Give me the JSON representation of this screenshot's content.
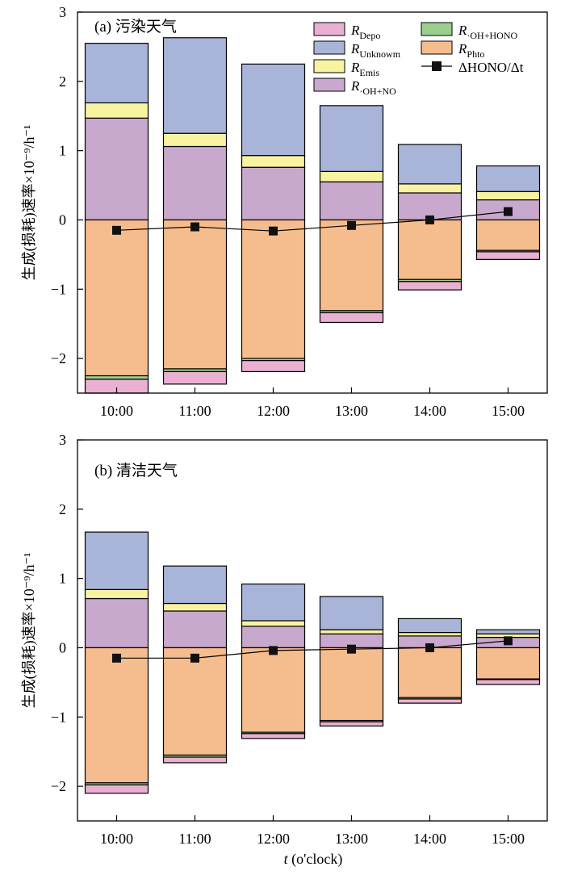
{
  "chart_data": {
    "type": "bar",
    "stacked": true,
    "ylabel": "生成(损耗)速率×10⁻⁹/h⁻¹",
    "xlabel": "t (o'clock)",
    "categories": [
      "10:00",
      "11:00",
      "12:00",
      "13:00",
      "14:00",
      "15:00"
    ],
    "ylim": [
      -2.5,
      3
    ],
    "yticks": [
      -2,
      -1,
      0,
      1,
      2,
      3
    ],
    "ytick_labels": [
      "−2",
      "−1",
      "0",
      "1",
      "2",
      "3"
    ],
    "legend": {
      "placement": "top-right",
      "entries": [
        {
          "key": "R_Depo",
          "base": "R",
          "sub": "Depo",
          "color": "#eab0d2"
        },
        {
          "key": "R_Unknown",
          "base": "R",
          "sub": "Unknowm",
          "color": "#a9b4d9"
        },
        {
          "key": "R_Emis",
          "base": "R",
          "sub": "Emis",
          "color": "#f8f3a0"
        },
        {
          "key": "R_OH_NO",
          "base": "R",
          "sub": "·OH+NO",
          "color": "#c8a9cd"
        },
        {
          "key": "R_OH_HONO",
          "base": "R",
          "sub": "·OH+HONO",
          "color": "#9ccf8e"
        },
        {
          "key": "R_Phto",
          "base": "R",
          "sub": "Phto",
          "color": "#f5bd8d"
        },
        {
          "key": "dHONO",
          "base": "ΔHONO/Δt",
          "sub": "",
          "color": "#000000"
        }
      ]
    },
    "panels": [
      {
        "title": "(a) 污染天气",
        "positive": [
          {
            "key": "R_OH_NO",
            "values": [
              1.47,
              1.06,
              0.76,
              0.55,
              0.39,
              0.29
            ]
          },
          {
            "key": "R_Emis",
            "values": [
              0.22,
              0.19,
              0.17,
              0.15,
              0.13,
              0.12
            ]
          },
          {
            "key": "R_Unknown",
            "values": [
              0.86,
              1.38,
              1.32,
              0.95,
              0.57,
              0.37
            ]
          }
        ],
        "negative": [
          {
            "key": "R_Phto",
            "values": [
              -2.25,
              -2.15,
              -2.0,
              -1.31,
              -0.86,
              -0.44
            ]
          },
          {
            "key": "R_OH_HONO",
            "values": [
              -0.05,
              -0.04,
              -0.03,
              -0.03,
              -0.03,
              -0.02
            ]
          },
          {
            "key": "R_Depo",
            "values": [
              -0.2,
              -0.18,
              -0.16,
              -0.14,
              -0.12,
              -0.11
            ]
          }
        ],
        "line": {
          "key": "dHONO",
          "values": [
            -0.15,
            -0.1,
            -0.16,
            -0.08,
            0.0,
            0.12
          ]
        }
      },
      {
        "title": "(b) 清洁天气",
        "positive": [
          {
            "key": "R_OH_NO",
            "values": [
              0.71,
              0.53,
              0.31,
              0.2,
              0.17,
              0.15
            ]
          },
          {
            "key": "R_Emis",
            "values": [
              0.13,
              0.11,
              0.08,
              0.06,
              0.05,
              0.05
            ]
          },
          {
            "key": "R_Unknown",
            "values": [
              0.83,
              0.54,
              0.53,
              0.48,
              0.2,
              0.06
            ]
          }
        ],
        "negative": [
          {
            "key": "R_Phto",
            "values": [
              -1.95,
              -1.55,
              -1.22,
              -1.05,
              -0.72,
              -0.45
            ]
          },
          {
            "key": "R_OH_HONO",
            "values": [
              -0.03,
              -0.03,
              -0.02,
              -0.02,
              -0.02,
              -0.01
            ]
          },
          {
            "key": "R_Depo",
            "values": [
              -0.12,
              -0.08,
              -0.07,
              -0.06,
              -0.06,
              -0.07
            ]
          }
        ],
        "line": {
          "key": "dHONO",
          "values": [
            -0.15,
            -0.15,
            -0.04,
            -0.02,
            0.0,
            0.1
          ]
        }
      }
    ]
  }
}
